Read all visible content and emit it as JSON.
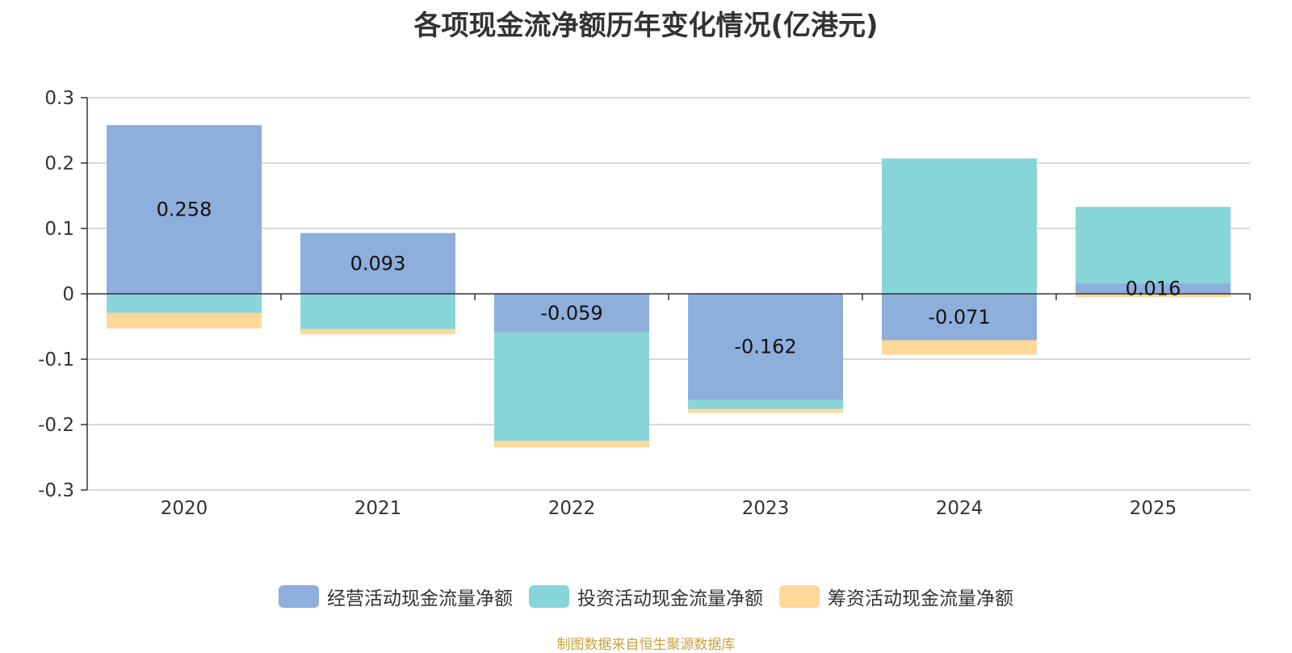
{
  "chart_data": {
    "type": "bar",
    "stacked": true,
    "title": "各项现金流净额历年变化情况(亿港元)",
    "categories": [
      "2020",
      "2021",
      "2022",
      "2023",
      "2024",
      "2025"
    ],
    "series": [
      {
        "name": "经营活动现金流量净额",
        "color": "#8eaedb",
        "values": [
          0.258,
          0.093,
          -0.059,
          -0.162,
          -0.071,
          0.016
        ]
      },
      {
        "name": "投资活动现金流量净额",
        "color": "#87d5d8",
        "values": [
          -0.029,
          -0.054,
          -0.166,
          -0.014,
          0.207,
          0.117
        ]
      },
      {
        "name": "筹资活动现金流量净额",
        "color": "#fdd898",
        "values": [
          -0.024,
          -0.008,
          -0.01,
          -0.006,
          -0.022,
          -0.005
        ]
      }
    ],
    "data_labels": [
      "0.258",
      "0.093",
      "-0.059",
      "-0.162",
      "-0.071",
      "0.016"
    ],
    "y_ticks": [
      "0.3",
      "0.2",
      "0.1",
      "0",
      "-0.1",
      "-0.2",
      "-0.3"
    ],
    "ylim": [
      -0.3,
      0.3
    ],
    "grid": true,
    "legend_position": "bottom"
  },
  "source_note": "制图数据来自恒生聚源数据库"
}
